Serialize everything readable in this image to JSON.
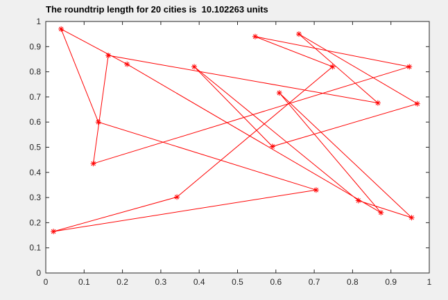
{
  "chart_data": {
    "type": "line",
    "title": "The roundtrip length for 20 cities is  10.102263 units",
    "xlabel": "",
    "ylabel": "",
    "xlim": [
      0,
      1
    ],
    "ylim": [
      0,
      1
    ],
    "grid": false,
    "xticks": [
      "0",
      "0.1",
      "0.2",
      "0.3",
      "0.4",
      "0.5",
      "0.6",
      "0.7",
      "0.8",
      "0.9",
      "1"
    ],
    "yticks": [
      "0",
      "0.1",
      "0.2",
      "0.3",
      "0.4",
      "0.5",
      "0.6",
      "0.7",
      "0.8",
      "0.9",
      "1"
    ],
    "line_color": "#ff0000",
    "marker": "asterisk",
    "series": [
      {
        "x": [
          0.04,
          0.137,
          0.705,
          0.02,
          0.342,
          0.748,
          0.546,
          0.948,
          0.124,
          0.163,
          0.866,
          0.66,
          0.969,
          0.591,
          0.387,
          0.815,
          0.954,
          0.609,
          0.874,
          0.212,
          0.04
        ],
        "y": [
          0.97,
          0.6,
          0.33,
          0.165,
          0.302,
          0.82,
          0.94,
          0.82,
          0.435,
          0.865,
          0.676,
          0.95,
          0.673,
          0.503,
          0.82,
          0.288,
          0.22,
          0.716,
          0.24,
          0.83,
          0.97
        ]
      }
    ]
  }
}
